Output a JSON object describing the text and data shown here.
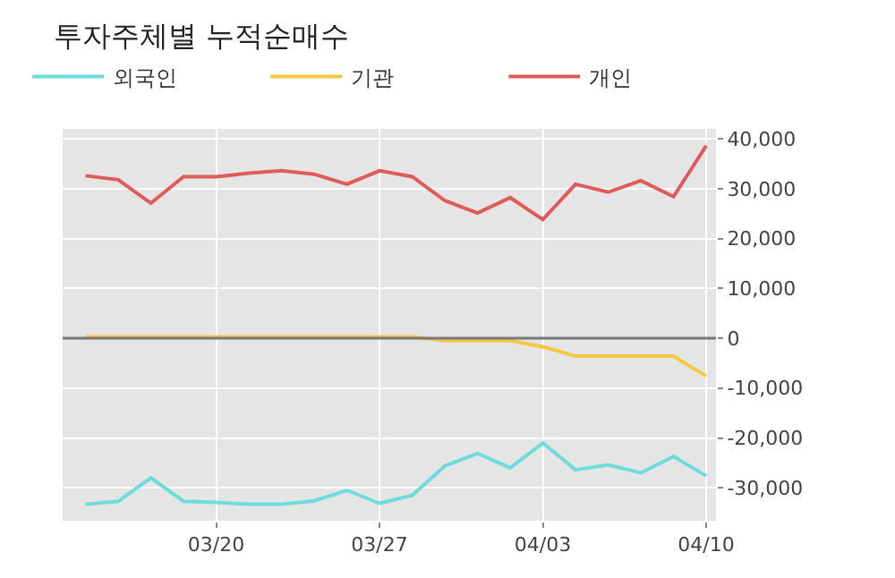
{
  "chart_data": {
    "type": "line",
    "title": "투자주체별 누적순매수",
    "categories": [
      null,
      null,
      null,
      null,
      "03/20",
      null,
      null,
      null,
      null,
      "03/27",
      null,
      null,
      null,
      null,
      "04/03",
      null,
      null,
      null,
      null,
      "04/10"
    ],
    "series": [
      {
        "name": "외국인",
        "color": "#6fdcdc",
        "values": [
          -33300,
          -32700,
          -28000,
          -32700,
          -32900,
          -33300,
          -33300,
          -32600,
          -30500,
          -33100,
          -31500,
          -25600,
          -23100,
          -26000,
          -21000,
          -26400,
          -25400,
          -27000,
          -23700,
          -27600
        ]
      },
      {
        "name": "기관",
        "color": "#f5c842",
        "values": [
          300,
          300,
          300,
          300,
          300,
          300,
          300,
          300,
          300,
          300,
          300,
          -500,
          -500,
          -500,
          -1700,
          -3600,
          -3600,
          -3600,
          -3600,
          -7600
        ]
      },
      {
        "name": "개인",
        "color": "#e05a5a",
        "values": [
          32600,
          31800,
          27100,
          32400,
          32400,
          33100,
          33600,
          32900,
          30900,
          33600,
          32400,
          27600,
          25100,
          28200,
          23800,
          30900,
          29300,
          31600,
          28400,
          38600
        ]
      }
    ],
    "ylim": [
      -36600,
      42000
    ],
    "yticks": [
      {
        "value": -30000,
        "label": "-30,000"
      },
      {
        "value": -20000,
        "label": "-20,000"
      },
      {
        "value": -10000,
        "label": "-10,000"
      },
      0,
      {
        "value": 10000,
        "label": "10,000"
      },
      {
        "value": 20000,
        "label": "20,000"
      },
      {
        "value": 30000,
        "label": "30,000"
      },
      {
        "value": 40000,
        "label": "40,000"
      }
    ],
    "ref_lines": [
      {
        "axis": "y",
        "value": 0,
        "color": "#777777"
      }
    ],
    "grid": true,
    "legend": "top left",
    "marker": "none",
    "line_style": "solid"
  }
}
